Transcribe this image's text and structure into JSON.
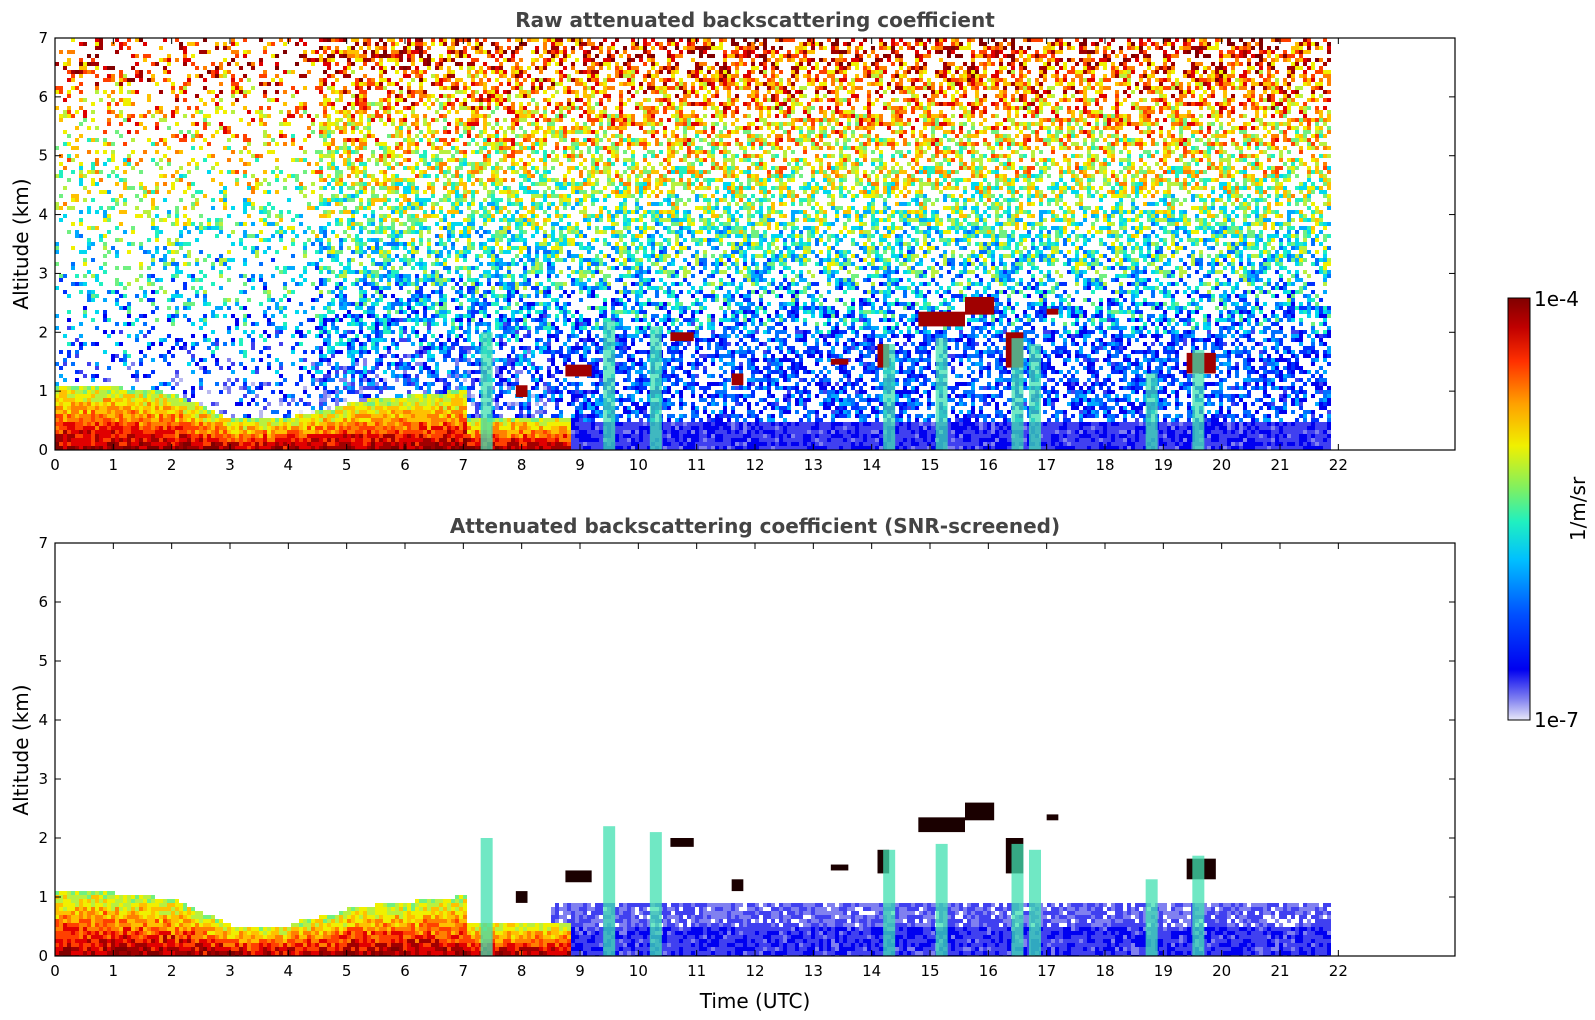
{
  "chart_data": [
    {
      "type": "heatmap",
      "title": "Raw attenuated backscattering coefficient",
      "xlabel": "",
      "ylabel": "Altitude (km)",
      "x_ticks": [
        "0",
        "1",
        "2",
        "3",
        "4",
        "5",
        "6",
        "7",
        "8",
        "9",
        "10",
        "11",
        "12",
        "13",
        "14",
        "15",
        "16",
        "17",
        "18",
        "19",
        "20",
        "21",
        "22"
      ],
      "y_ticks": [
        "0",
        "1",
        "2",
        "3",
        "4",
        "5",
        "6",
        "7"
      ],
      "xlim": [
        0,
        24
      ],
      "ylim": [
        0,
        7
      ],
      "data_end_x": 21.85,
      "layers": [
        {
          "name": "boundary-layer aerosol",
          "x_start": 0,
          "x_end": 7.4,
          "base_km": 0,
          "top_km": [
            1.15,
            1.1,
            0.95,
            0.55,
            0.5,
            0.8,
            0.9,
            1.1
          ],
          "level": "high"
        },
        {
          "name": "cloud",
          "x_start": 8.8,
          "x_end": 9.2,
          "base_km": 1.2,
          "top_km": 1.45,
          "level": "max"
        },
        {
          "name": "cloud",
          "x_start": 10.6,
          "x_end": 10.9,
          "base_km": 1.85,
          "top_km": 2.0,
          "level": "max"
        },
        {
          "name": "cloud",
          "x_start": 14.7,
          "x_end": 16.1,
          "base_km": 2.1,
          "top_km": 2.6,
          "level": "max"
        },
        {
          "name": "cloud",
          "x_start": 19.4,
          "x_end": 19.9,
          "base_km": 1.2,
          "top_km": 1.7,
          "level": "max"
        }
      ]
    },
    {
      "type": "heatmap",
      "title": "Attenuated backscattering coefficient (SNR-screened)",
      "xlabel": "Time (UTC)",
      "ylabel": "Altitude (km)",
      "x_ticks": [
        "0",
        "1",
        "2",
        "3",
        "4",
        "5",
        "6",
        "7",
        "8",
        "9",
        "10",
        "11",
        "12",
        "13",
        "14",
        "15",
        "16",
        "17",
        "18",
        "19",
        "20",
        "21",
        "22"
      ],
      "y_ticks": [
        "0",
        "1",
        "2",
        "3",
        "4",
        "5",
        "6",
        "7"
      ],
      "xlim": [
        0,
        24
      ],
      "ylim": [
        0,
        7
      ],
      "data_end_x": 21.85,
      "screened": true
    }
  ],
  "colorbar": {
    "label": "1/m/sr",
    "max_label": "1e-4",
    "min_label": "1e-7",
    "colors": [
      "#e8e8f8",
      "#b8b8f0",
      "#8080f0",
      "#4040f0",
      "#0000f0",
      "#0030ff",
      "#0070ff",
      "#00a8ff",
      "#00d8f0",
      "#20f0c0",
      "#70f080",
      "#b8f040",
      "#f0f000",
      "#ffc000",
      "#ff8000",
      "#ff4000",
      "#e00000",
      "#a00000",
      "#800000"
    ]
  }
}
